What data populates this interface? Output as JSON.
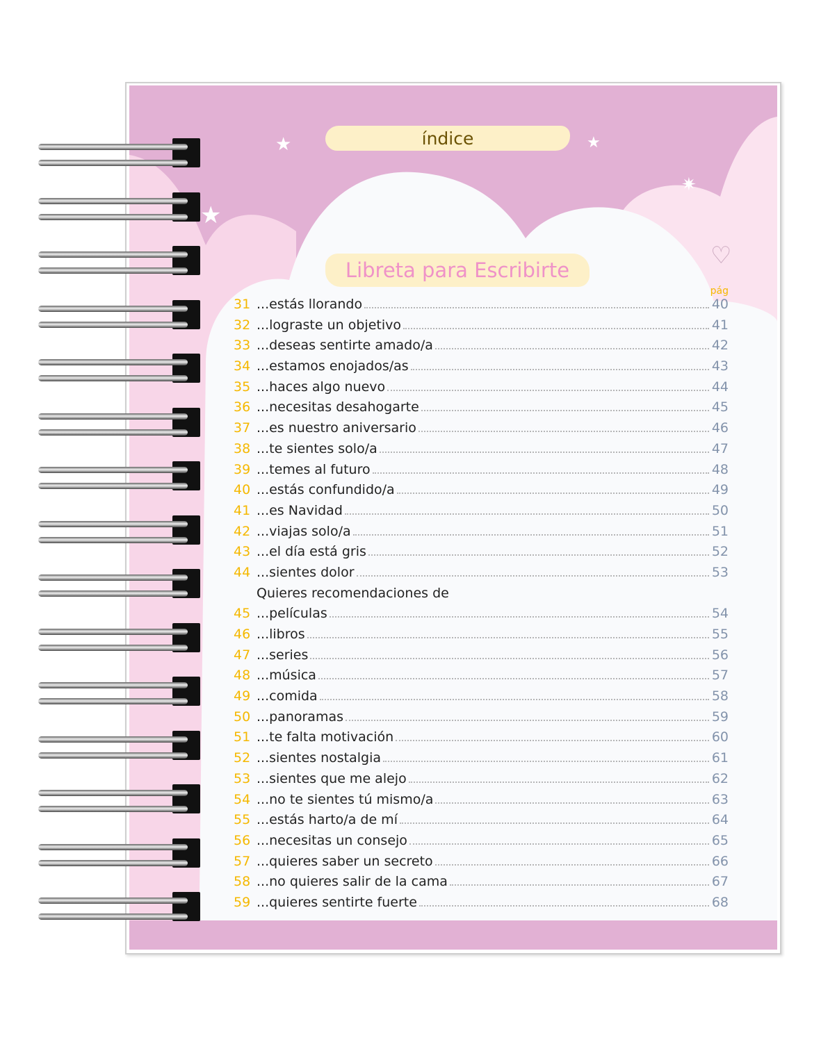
{
  "header": {
    "title": "índice",
    "subtitle": "Libreta para Escribirte",
    "page_label": "pág"
  },
  "colors": {
    "accent_number": "#f5b800",
    "page_number": "#8393ab",
    "title_pill": "#fdf0c8",
    "pink_bg": "#e2b1d4"
  },
  "entries_a": [
    {
      "num": "31",
      "text": "...estás llorando",
      "page": "40"
    },
    {
      "num": "32",
      "text": "...lograste un objetivo",
      "page": "41"
    },
    {
      "num": "33",
      "text": "...deseas sentirte amado/a",
      "page": "42"
    },
    {
      "num": "34",
      "text": "...estamos enojados/as",
      "page": "43"
    },
    {
      "num": "35",
      "text": "...haces algo nuevo",
      "page": "44"
    },
    {
      "num": "36",
      "text": "...necesitas desahogarte",
      "page": "45"
    },
    {
      "num": "37",
      "text": "...es nuestro aniversario",
      "page": "46"
    },
    {
      "num": "38",
      "text": "...te sientes solo/a",
      "page": "47"
    },
    {
      "num": "39",
      "text": "...temes al futuro",
      "page": "48"
    },
    {
      "num": "40",
      "text": "...estás confundido/a",
      "page": "49"
    },
    {
      "num": "41",
      "text": "...es Navidad",
      "page": "50"
    },
    {
      "num": "42",
      "text": "...viajas solo/a",
      "page": "51"
    },
    {
      "num": "43",
      "text": "...el día está gris",
      "page": "52"
    },
    {
      "num": "44",
      "text": "...sientes dolor",
      "page": "53"
    }
  ],
  "section_heading": "Quieres recomendaciones de",
  "entries_b": [
    {
      "num": "45",
      "text": "...películas",
      "page": "54"
    },
    {
      "num": "46",
      "text": "...libros",
      "page": "55"
    },
    {
      "num": "47",
      "text": "...series",
      "page": "56"
    },
    {
      "num": "48",
      "text": "...música",
      "page": "57"
    },
    {
      "num": "49",
      "text": "...comida",
      "page": "58"
    },
    {
      "num": "50",
      "text": "...panoramas",
      "page": "59"
    },
    {
      "num": "51",
      "text": "...te falta motivación",
      "page": "60"
    },
    {
      "num": "52",
      "text": "...sientes nostalgia",
      "page": "61"
    },
    {
      "num": "53",
      "text": "...sientes que me alejo",
      "page": "62"
    },
    {
      "num": "54",
      "text": "...no te sientes tú mismo/a",
      "page": "63"
    },
    {
      "num": "55",
      "text": "...estás harto/a de mí",
      "page": "64"
    },
    {
      "num": "56",
      "text": "...necesitas un consejo",
      "page": "65"
    },
    {
      "num": "57",
      "text": "...quieres saber un secreto",
      "page": "66"
    },
    {
      "num": "58",
      "text": "...no quieres salir de la cama",
      "page": "67"
    },
    {
      "num": "59",
      "text": "...quieres sentirte fuerte",
      "page": "68"
    }
  ]
}
